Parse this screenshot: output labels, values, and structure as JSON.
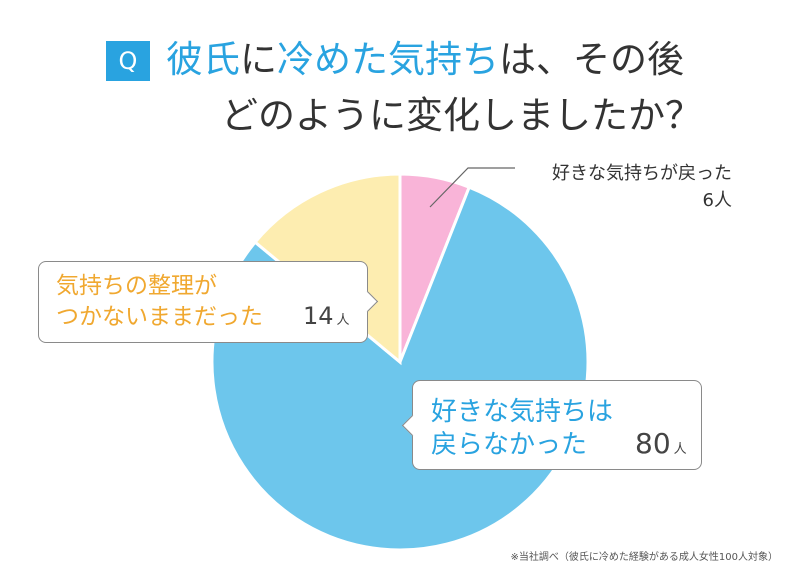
{
  "badge": "Q",
  "title": {
    "line1": [
      {
        "text": "彼氏",
        "highlight": true
      },
      {
        "text": "に",
        "highlight": false
      },
      {
        "text": "冷めた気持ち",
        "highlight": true
      },
      {
        "text": "は、その後",
        "highlight": false
      }
    ],
    "line2": "どのように変化しましたか？"
  },
  "colors": {
    "accent_blue": "#29a3e0",
    "accent_orange": "#f0a830",
    "text": "#333333"
  },
  "chart_data": {
    "type": "pie",
    "start": "12 o'clock, clockwise",
    "slices": [
      {
        "label": "好きな気持ちが戻った",
        "value": 6,
        "unit": "人",
        "color": "#f9b4d8"
      },
      {
        "label": "好きな気持ちは戻らなかった",
        "value": 80,
        "unit": "人",
        "color": "#6dc6ec"
      },
      {
        "label": "気持ちの整理がつかないままだった",
        "value": 14,
        "unit": "人",
        "color": "#fdedb0"
      }
    ]
  },
  "callouts": {
    "returned": {
      "line1": "好きな気持ちが戻った",
      "count": "6",
      "unit": "人"
    },
    "unsorted": {
      "line1": "気持ちの整理が",
      "line2": "つかないままだった",
      "count": "14",
      "unit": "人"
    },
    "not_returned": {
      "line1": "好きな気持ちは",
      "line2": "戻らなかった",
      "count": "80",
      "unit": "人"
    }
  },
  "footnote": "※当社調べ（彼氏に冷めた経験がある成人女性100人対象）"
}
